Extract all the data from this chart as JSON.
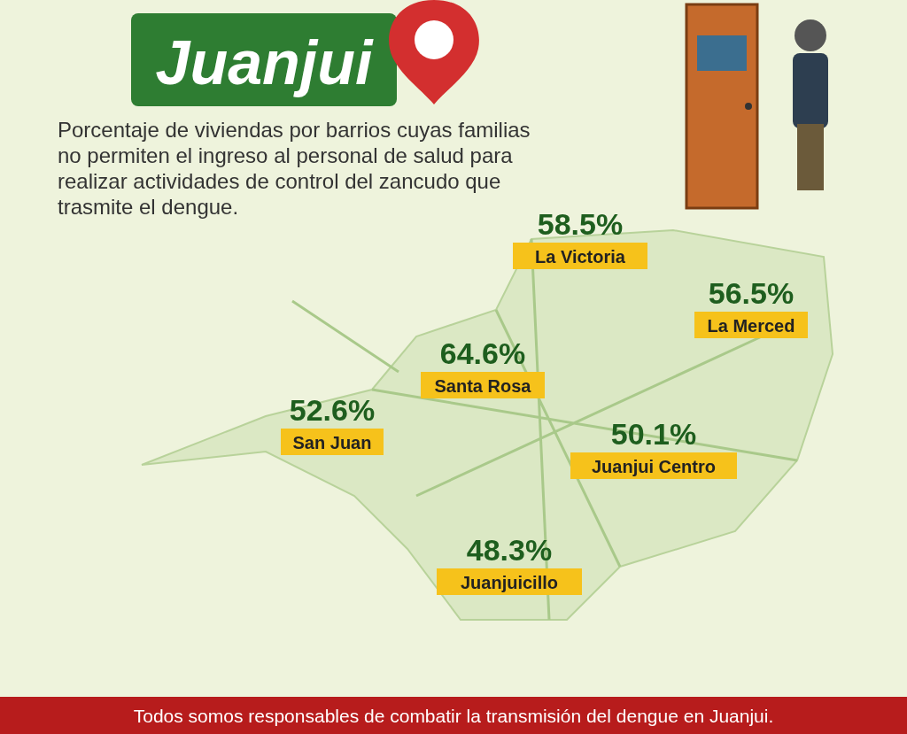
{
  "chart_data": {
    "type": "other",
    "title": "Juanjui",
    "subtitle": "Porcentaje de viviendas por barrios cuyas familias no permiten el ingreso al personal de salud para realizar actividades de control del zancudo que trasmite el dengue.",
    "categories": [
      "La Victoria",
      "La Merced",
      "Santa Rosa",
      "San Juan",
      "Juanjui Centro",
      "Juanjuicillo"
    ],
    "values": [
      58.5,
      56.5,
      64.6,
      52.6,
      50.1,
      48.3
    ],
    "value_labels": [
      "58.5%",
      "56.5%",
      "64.6%",
      "52.6%",
      "50.1%",
      "48.3%"
    ],
    "annotations": [
      "Todos somos responsables de combatir la transmisión del dengue en Juanjui."
    ]
  }
}
